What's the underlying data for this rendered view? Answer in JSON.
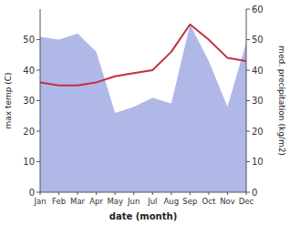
{
  "chart_data": {
    "type": "line",
    "categories": [
      "Jan",
      "Feb",
      "Mar",
      "Apr",
      "May",
      "Jun",
      "Jul",
      "Aug",
      "Sep",
      "Oct",
      "Nov",
      "Dec"
    ],
    "xlabel": "date (month)",
    "ylabel": "max temp (C)",
    "y2label": "med. precipitation (kg/m2)",
    "ylim": [
      0,
      60
    ],
    "yticks": [
      0,
      10,
      20,
      30,
      40,
      50
    ],
    "y2lim": [
      0,
      60
    ],
    "y2ticks": [
      0,
      10,
      20,
      30,
      40,
      50,
      60
    ],
    "series": [
      {
        "type": "area",
        "axis": "y2",
        "color": "#b0b8e8",
        "values": [
          51,
          50,
          52,
          46,
          26,
          28,
          31,
          29,
          55,
          43,
          28,
          49
        ]
      },
      {
        "type": "line",
        "color": "#c03040",
        "values": [
          36,
          35,
          35,
          36,
          38,
          39,
          40,
          46,
          55,
          50,
          44,
          43
        ]
      }
    ]
  }
}
